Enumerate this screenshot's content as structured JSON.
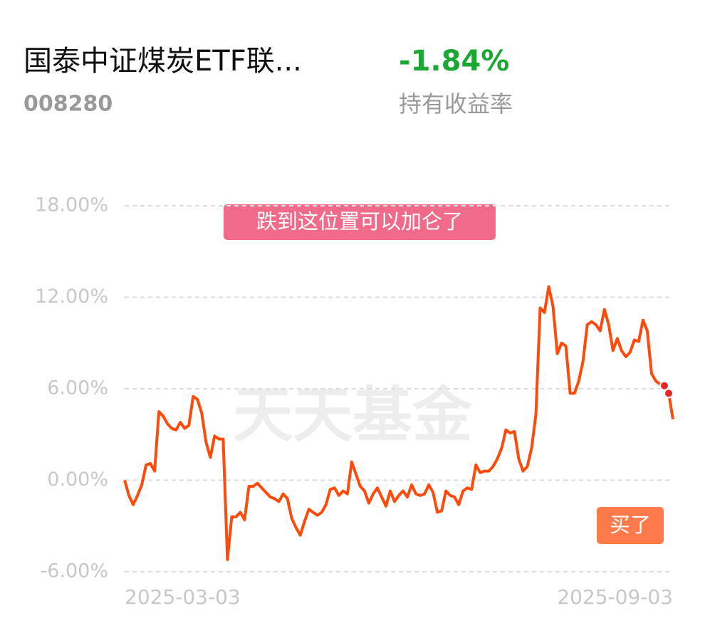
{
  "header": {
    "fund_name": "国泰中证煤炭ETF联...",
    "fund_code": "008280",
    "return_value": "-1.84%",
    "return_label": "持有收益率"
  },
  "chart_data": {
    "type": "line",
    "watermark": "天天基金",
    "categories": [
      "2025-03-03",
      null,
      null,
      null,
      null,
      null,
      null,
      null,
      null,
      null,
      null,
      null,
      null,
      null,
      null,
      null,
      null,
      null,
      null,
      null,
      null,
      null,
      null,
      null,
      null,
      null,
      null,
      null,
      null,
      null,
      null,
      null,
      null,
      null,
      null,
      null,
      null,
      null,
      null,
      null,
      null,
      null,
      null,
      null,
      null,
      null,
      null,
      null,
      null,
      null,
      null,
      null,
      null,
      null,
      null,
      null,
      null,
      null,
      null,
      null,
      null,
      null,
      null,
      null,
      null,
      null,
      null,
      null,
      null,
      null,
      null,
      null,
      null,
      null,
      null,
      null,
      null,
      null,
      null,
      null,
      null,
      null,
      null,
      null,
      null,
      null,
      null,
      null,
      null,
      null,
      null,
      null,
      null,
      null,
      null,
      null,
      null,
      null,
      null,
      null,
      null,
      null,
      null,
      null,
      null,
      null,
      null,
      null,
      null,
      null,
      null,
      null,
      null,
      null,
      null,
      null,
      null,
      null,
      null,
      null,
      null,
      null,
      null,
      null,
      null,
      null,
      null,
      null,
      "2025-09-03"
    ],
    "series": [
      {
        "color": "#ff4a0a",
        "values": [
          0,
          -1.0,
          -1.6,
          -1.0,
          -0.3,
          1.0,
          1.1,
          0.6,
          4.5,
          4.2,
          3.7,
          3.4,
          3.3,
          3.8,
          3.4,
          3.6,
          5.5,
          5.3,
          4.4,
          2.5,
          1.5,
          2.9,
          2.7,
          2.7,
          -5.2,
          -2.4,
          -2.4,
          -2.1,
          -2.6,
          -0.4,
          -0.4,
          -0.2,
          -0.5,
          -0.8,
          -1.1,
          -1.2,
          -1.4,
          -0.9,
          -1.2,
          -2.5,
          -3.1,
          -3.6,
          -2.7,
          -1.9,
          -2.1,
          -2.3,
          -2.1,
          -1.6,
          -0.6,
          -0.5,
          -1.0,
          -0.7,
          -0.9,
          1.2,
          0.4,
          -0.4,
          -0.7,
          -1.5,
          -0.9,
          -0.5,
          -1.1,
          -1.7,
          -0.7,
          -1.4,
          -1.0,
          -0.7,
          -1.1,
          -0.3,
          -0.9,
          -1.0,
          -0.9,
          -0.3,
          -0.8,
          -2.1,
          -2.0,
          -0.7,
          -1.0,
          -1.1,
          -1.6,
          -0.7,
          -0.5,
          -0.6,
          1.0,
          0.5,
          0.6,
          0.6,
          0.9,
          1.4,
          2.1,
          3.3,
          3.1,
          3.2,
          1.4,
          0.6,
          0.9,
          2.1,
          4.3,
          11.3,
          11.0,
          12.7,
          11.4,
          8.3,
          9.0,
          8.8,
          5.7,
          5.7,
          6.5,
          7.8,
          10.2,
          10.4,
          10.2,
          9.8,
          11.2,
          10.2,
          8.5,
          9.3,
          8.5,
          8.1,
          8.4,
          9.2,
          9.1,
          10.5,
          9.8,
          7.0,
          6.5,
          6.3,
          6.2,
          5.7,
          4.0
        ]
      }
    ],
    "ylim": [
      -6,
      18
    ],
    "yticks": [
      {
        "value": -6,
        "label": "-6.00%"
      },
      {
        "value": 0,
        "label": "0.00%"
      },
      {
        "value": 6,
        "label": "6.00%"
      },
      {
        "value": 12,
        "label": "12.00%"
      },
      {
        "value": 18,
        "label": "18.00%"
      }
    ],
    "grid": true,
    "annotations": [
      "跌到这位置可以加仑了",
      "买了"
    ]
  }
}
